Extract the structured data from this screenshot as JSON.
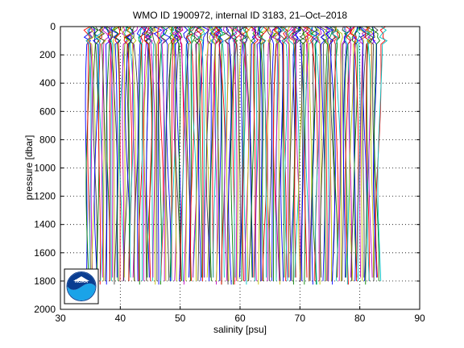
{
  "chart_data": {
    "type": "line",
    "title": "WMO ID 1900972, internal ID 3183, 21–Oct–2018",
    "xlabel": "salinity [psu]",
    "ylabel": "pressure [dbar]",
    "xlim": [
      30,
      90
    ],
    "ylim": [
      0,
      2000
    ],
    "y_reversed": true,
    "x_ticks": [
      30,
      40,
      50,
      60,
      70,
      80,
      90
    ],
    "y_ticks": [
      0,
      200,
      400,
      600,
      800,
      1000,
      1200,
      1400,
      1600,
      1800,
      2000
    ],
    "grid": true,
    "grid_style": "dotted",
    "series_note": "Waterfall of salinity profiles, each offset successively to the right",
    "series_colors": [
      "#0000ff",
      "#008000",
      "#ff0000",
      "#00bfbf",
      "#bf00bf",
      "#bfbf00",
      "#404040"
    ],
    "profile_count": 200,
    "profile_start_salinity": 34.3,
    "profile_end_salinity": 83.3,
    "profile_max_pressure": 1830
  },
  "logo": {
    "name": "noaa-logo",
    "text": "NOAA"
  }
}
